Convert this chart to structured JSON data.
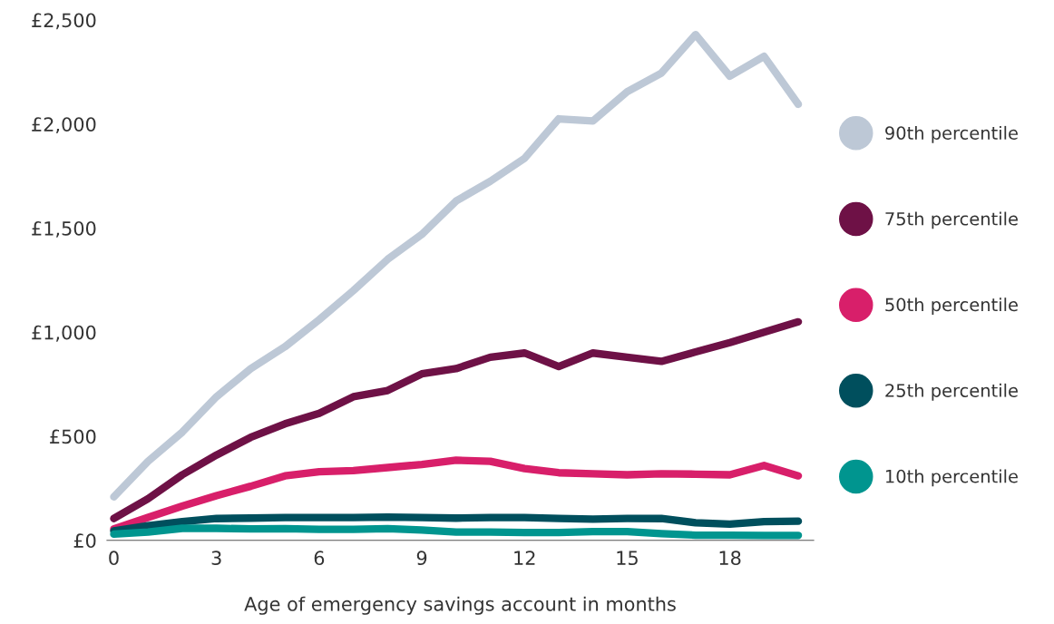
{
  "chart_data": {
    "type": "line",
    "xlabel": "Age of emergency savings account in months",
    "x": [
      0,
      1,
      2,
      3,
      4,
      5,
      6,
      7,
      8,
      9,
      10,
      11,
      12,
      13,
      14,
      15,
      16,
      17,
      18,
      19,
      20
    ],
    "xlim": [
      -0.2,
      20.45
    ],
    "xticks": [
      0,
      3,
      6,
      9,
      12,
      15,
      18
    ],
    "ylim": [
      0,
      2500
    ],
    "yticks": [
      {
        "value": 0,
        "label": "£0"
      },
      {
        "value": 500,
        "label": "£500"
      },
      {
        "value": 1000,
        "label": "£1,000"
      },
      {
        "value": 1500,
        "label": "£1,500"
      },
      {
        "value": 2000,
        "label": "£2,000"
      },
      {
        "value": 2500,
        "label": "£2,500"
      }
    ],
    "grid": false,
    "legend": "right",
    "marker": "none",
    "line_style": "solid",
    "series": [
      {
        "name": "90th percentile",
        "color": "#bdc8d6",
        "values": [
          209,
          380,
          520,
          690,
          825,
          930,
          1060,
          1200,
          1350,
          1470,
          1630,
          1725,
          1835,
          2025,
          2015,
          2155,
          2245,
          2430,
          2230,
          2325,
          2095
        ]
      },
      {
        "name": "75th percentile",
        "color": "#6e1146",
        "values": [
          105,
          200,
          315,
          410,
          495,
          560,
          610,
          690,
          720,
          800,
          825,
          880,
          900,
          835,
          900,
          880,
          860,
          905,
          950,
          1000,
          1050
        ]
      },
      {
        "name": "50th percentile",
        "color": "#d81f6a",
        "values": [
          55,
          110,
          165,
          215,
          260,
          310,
          330,
          335,
          350,
          365,
          385,
          380,
          345,
          325,
          320,
          315,
          320,
          318,
          315,
          360,
          310
        ]
      },
      {
        "name": "25th percentile",
        "color": "#004f5d",
        "values": [
          45,
          70,
          90,
          105,
          107,
          110,
          110,
          110,
          112,
          110,
          107,
          110,
          110,
          105,
          102,
          105,
          105,
          85,
          78,
          90,
          92
        ]
      },
      {
        "name": "10th percentile",
        "color": "#00958f",
        "values": [
          30,
          40,
          58,
          58,
          55,
          56,
          53,
          53,
          56,
          50,
          40,
          40,
          38,
          38,
          42,
          42,
          32,
          25,
          25,
          24,
          24
        ]
      }
    ]
  }
}
